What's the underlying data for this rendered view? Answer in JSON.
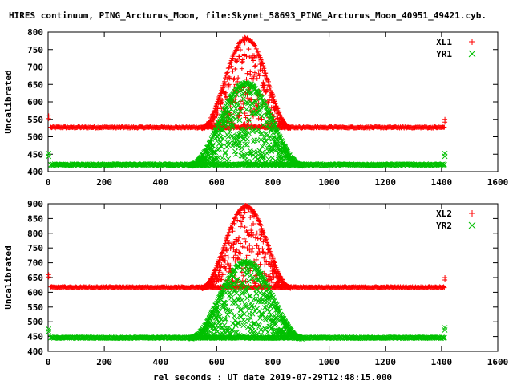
{
  "title": "HIRES continuum, PING_Arcturus_Moon, file:Skynet_58693_PING_Arcturus_Moon_40951_49421.cyb.",
  "xlabel": "rel seconds : UT date 2019-07-29T12:48:15.000",
  "colors": {
    "red": "#ff0000",
    "green": "#00c000"
  },
  "chart_data": [
    {
      "type": "scatter",
      "ylabel": "Uncalibrated",
      "xlim": [
        0,
        1600
      ],
      "ylim": [
        400,
        800
      ],
      "xticks": [
        0,
        200,
        400,
        600,
        800,
        1000,
        1200,
        1400,
        1600
      ],
      "yticks": [
        400,
        450,
        500,
        550,
        600,
        650,
        700,
        750,
        800
      ],
      "legend_position": "top-right",
      "series": [
        {
          "name": "XL1",
          "marker": "plus",
          "color": "#ff0000",
          "x_range": [
            0,
            1420
          ],
          "baseline": 527,
          "peak": 785,
          "peak_x": 705,
          "peak_half_width": 160,
          "edge_values": [
            560,
            550
          ]
        },
        {
          "name": "YR1",
          "marker": "cross",
          "color": "#00c000",
          "x_range": [
            0,
            1420
          ],
          "baseline": 420,
          "peak": 655,
          "peak_x": 705,
          "peak_half_width": 200,
          "edge_values": [
            452,
            452
          ]
        }
      ]
    },
    {
      "type": "scatter",
      "ylabel": "Uncalibrated",
      "xlim": [
        0,
        1600
      ],
      "ylim": [
        400,
        900
      ],
      "xticks": [
        0,
        200,
        400,
        600,
        800,
        1000,
        1200,
        1400,
        1600
      ],
      "yticks": [
        400,
        450,
        500,
        550,
        600,
        650,
        700,
        750,
        800,
        850,
        900
      ],
      "legend_position": "top-right",
      "series": [
        {
          "name": "XL2",
          "marker": "plus",
          "color": "#ff0000",
          "x_range": [
            0,
            1420
          ],
          "baseline": 617,
          "peak": 895,
          "peak_x": 705,
          "peak_half_width": 160,
          "edge_values": [
            660,
            650
          ]
        },
        {
          "name": "YR2",
          "marker": "cross",
          "color": "#00c000",
          "x_range": [
            0,
            1420
          ],
          "baseline": 446,
          "peak": 705,
          "peak_x": 705,
          "peak_half_width": 200,
          "edge_values": [
            475,
            480
          ]
        }
      ]
    }
  ]
}
